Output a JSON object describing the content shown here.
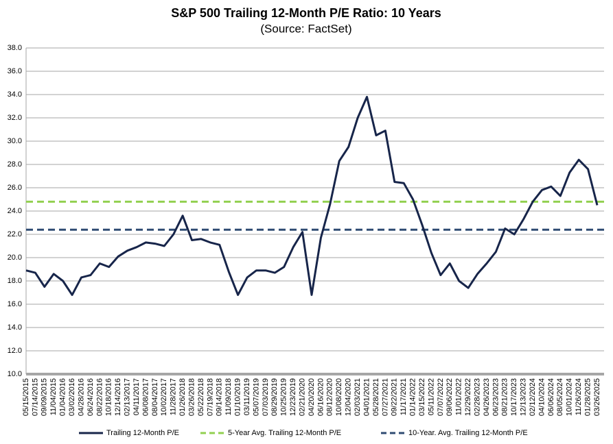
{
  "chart_data": {
    "type": "line",
    "title": "S&P 500 Trailing 12-Month P/E Ratio: 10 Years",
    "subtitle": "(Source: FactSet)",
    "categories": [
      "05/15/2015",
      "07/14/2015",
      "09/09/2015",
      "11/04/2015",
      "01/04/2016",
      "03/02/2016",
      "04/28/2016",
      "06/24/2016",
      "08/22/2016",
      "10/18/2016",
      "12/14/2016",
      "02/13/2017",
      "04/11/2017",
      "06/08/2017",
      "08/04/2017",
      "10/02/2017",
      "11/28/2017",
      "01/26/2018",
      "03/26/2018",
      "05/22/2018",
      "07/19/2018",
      "09/14/2018",
      "11/09/2018",
      "01/10/2019",
      "03/11/2019",
      "05/07/2019",
      "07/03/2019",
      "08/29/2019",
      "10/25/2019",
      "12/23/2019",
      "02/21/2020",
      "04/20/2020",
      "06/16/2020",
      "08/12/2020",
      "10/08/2020",
      "12/04/2020",
      "02/03/2021",
      "04/01/2021",
      "05/28/2021",
      "07/27/2021",
      "09/22/2021",
      "11/17/2021",
      "01/14/2022",
      "03/15/2022",
      "05/11/2022",
      "07/07/2022",
      "09/06/2022",
      "11/01/2022",
      "12/29/2022",
      "02/28/2023",
      "04/26/2023",
      "06/23/2023",
      "08/21/2023",
      "10/17/2023",
      "12/13/2023",
      "02/12/2024",
      "04/10/2024",
      "06/06/2024",
      "08/05/2024",
      "10/01/2024",
      "11/26/2024",
      "01/28/2025",
      "03/26/2025"
    ],
    "series": [
      {
        "name": "Trailing 12-Month P/E",
        "color": "#17254a",
        "values": [
          18.9,
          18.7,
          17.5,
          18.6,
          18.0,
          16.8,
          18.3,
          18.5,
          19.5,
          19.2,
          20.1,
          20.6,
          20.9,
          21.3,
          21.2,
          21.0,
          22.0,
          23.6,
          21.5,
          21.6,
          21.3,
          21.1,
          18.8,
          16.8,
          18.3,
          18.9,
          18.9,
          18.7,
          19.2,
          20.9,
          22.2,
          16.8,
          21.7,
          24.6,
          28.3,
          29.5,
          32.0,
          33.8,
          30.5,
          30.9,
          26.5,
          26.4,
          25.0,
          22.8,
          20.4,
          18.5,
          19.5,
          18.0,
          17.4,
          18.6,
          19.5,
          20.5,
          22.5,
          22.0,
          23.3,
          24.8,
          25.8,
          26.1,
          25.3,
          27.3,
          28.4,
          27.6,
          24.5
        ]
      }
    ],
    "reference_lines": [
      {
        "name": "5-Year Avg. Trailing 12-Month P/E",
        "color": "#92d050",
        "value": 24.8
      },
      {
        "name": "10-Year. Avg. Trailing 12-Month P/E",
        "color": "#2f4b72",
        "value": 22.4
      }
    ],
    "ylim": [
      10,
      38
    ],
    "yticks": [
      {
        "value": 10,
        "label": "10.0"
      },
      {
        "value": 12,
        "label": "12.0"
      },
      {
        "value": 14,
        "label": "14.0"
      },
      {
        "value": 16,
        "label": "16.0"
      },
      {
        "value": 18,
        "label": "18.0"
      },
      {
        "value": 20,
        "label": "20.0"
      },
      {
        "value": 22,
        "label": "22.0"
      },
      {
        "value": 24,
        "label": "24.0"
      },
      {
        "value": 26,
        "label": "26.0"
      },
      {
        "value": 28,
        "label": "28.0"
      },
      {
        "value": 30,
        "label": "30.0"
      },
      {
        "value": 32,
        "label": "32.0"
      },
      {
        "value": 34,
        "label": "34.0"
      },
      {
        "value": 36,
        "label": "36.0"
      },
      {
        "value": 38,
        "label": "38.0"
      }
    ],
    "grid": true,
    "legend": "bottom"
  }
}
